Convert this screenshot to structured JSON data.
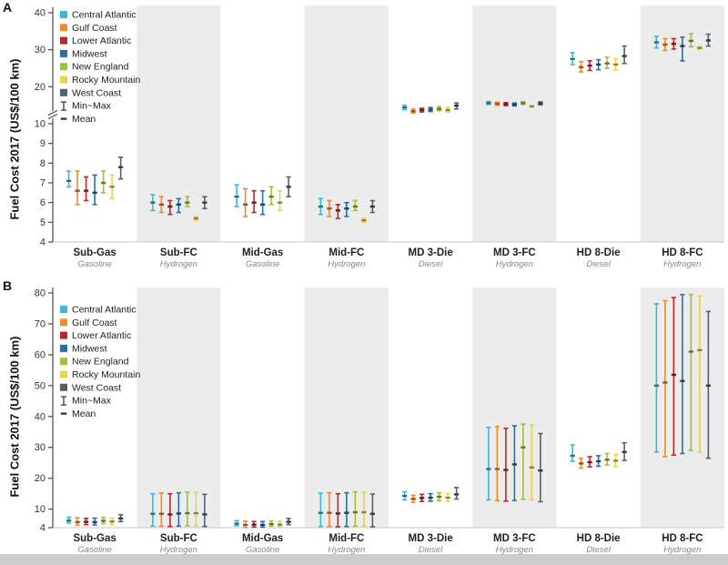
{
  "figure": {
    "bottom_strip_color": "#cdcdcd",
    "background_color": "#ffffff"
  },
  "chart_data": [
    {
      "type": "errorbar",
      "panel_label": "A",
      "ylabel": "Fuel Cost  2017 (US$/100 km)",
      "ylim": [
        4,
        40
      ],
      "yticks": [
        4,
        5,
        6,
        7,
        8,
        9,
        10,
        20,
        30,
        40
      ],
      "axis_break": true,
      "break_between": [
        10,
        20
      ],
      "grid": false,
      "legend_position": "top-left",
      "band_color": "#ececec",
      "marker_dark": "#2f3a45",
      "categories": [
        {
          "label": "Sub-Gas",
          "fuel": "Gasoline"
        },
        {
          "label": "Sub-FC",
          "fuel": "Hydrogen"
        },
        {
          "label": "Mid-Gas",
          "fuel": "Gasoline"
        },
        {
          "label": "Mid-FC",
          "fuel": "Hydrogen"
        },
        {
          "label": "MD 3-Die",
          "fuel": "Diesel"
        },
        {
          "label": "MD 3-FC",
          "fuel": "Hydrogen"
        },
        {
          "label": "HD 8-Die",
          "fuel": "Diesel"
        },
        {
          "label": "HD 8-FC",
          "fuel": "Hydrogen"
        }
      ],
      "regions": [
        {
          "name": "Central Atlantic",
          "color": "#3bb8d9"
        },
        {
          "name": "Gulf Coast",
          "color": "#ef8b2c"
        },
        {
          "name": "Lower Atlantic",
          "color": "#b2292e"
        },
        {
          "name": "Midwest",
          "color": "#2a6ea6"
        },
        {
          "name": "New England",
          "color": "#a2c037"
        },
        {
          "name": "Rocky Mountain",
          "color": "#e8d44d"
        },
        {
          "name": "West Coast",
          "color": "#53616f"
        }
      ],
      "legend_extra": [
        {
          "name": "Min~Max",
          "glyph": "errorbar-icon"
        },
        {
          "name": "Mean",
          "glyph": "dash-icon"
        }
      ],
      "values_format": "per category: per region [min, mean, max]",
      "values": [
        [
          [
            6.8,
            7.1,
            7.6
          ],
          [
            5.9,
            6.6,
            7.6
          ],
          [
            6.1,
            6.6,
            7.3
          ],
          [
            5.9,
            6.5,
            7.4
          ],
          [
            6.5,
            7.0,
            7.6
          ],
          [
            6.2,
            6.8,
            7.4
          ],
          [
            7.2,
            7.8,
            8.3
          ]
        ],
        [
          [
            5.6,
            6.0,
            6.4
          ],
          [
            5.5,
            5.9,
            6.3
          ],
          [
            5.4,
            5.8,
            6.1
          ],
          [
            5.5,
            5.9,
            6.2
          ],
          [
            5.8,
            6.0,
            6.3
          ],
          [
            5.1,
            5.2,
            5.3
          ],
          [
            5.7,
            6.0,
            6.3
          ]
        ],
        [
          [
            5.8,
            6.3,
            6.9
          ],
          [
            5.3,
            5.9,
            6.7
          ],
          [
            5.5,
            6.0,
            6.6
          ],
          [
            5.4,
            5.9,
            6.6
          ],
          [
            5.9,
            6.3,
            6.8
          ],
          [
            5.6,
            6.0,
            6.6
          ],
          [
            6.3,
            6.8,
            7.3
          ]
        ],
        [
          [
            5.4,
            5.8,
            6.2
          ],
          [
            5.3,
            5.7,
            6.1
          ],
          [
            5.2,
            5.6,
            5.9
          ],
          [
            5.3,
            5.7,
            6.0
          ],
          [
            5.6,
            5.8,
            6.1
          ],
          [
            5.0,
            5.1,
            5.2
          ],
          [
            5.5,
            5.8,
            6.1
          ]
        ],
        [
          [
            13.8,
            14.4,
            15.0
          ],
          [
            12.9,
            13.4,
            14.0
          ],
          [
            13.2,
            13.7,
            14.2
          ],
          [
            13.3,
            13.8,
            14.4
          ],
          [
            13.5,
            14.0,
            14.6
          ],
          [
            13.2,
            13.7,
            14.4
          ],
          [
            14.0,
            14.9,
            15.6
          ]
        ],
        [
          [
            15.2,
            15.6,
            16.0
          ],
          [
            15.0,
            15.4,
            15.8
          ],
          [
            14.9,
            15.3,
            15.7
          ],
          [
            14.8,
            15.2,
            15.6
          ],
          [
            15.2,
            15.6,
            15.9
          ],
          [
            14.6,
            14.7,
            14.8
          ],
          [
            15.1,
            15.5,
            15.9
          ]
        ],
        [
          [
            26.0,
            27.5,
            29.2
          ],
          [
            24.0,
            25.3,
            26.8
          ],
          [
            24.4,
            25.7,
            27.0
          ],
          [
            24.6,
            26.0,
            27.3
          ],
          [
            25.0,
            26.3,
            28.0
          ],
          [
            24.5,
            26.0,
            27.6
          ],
          [
            26.3,
            28.3,
            31.0
          ]
        ],
        [
          [
            30.5,
            32.0,
            33.6
          ],
          [
            29.8,
            31.4,
            33.0
          ],
          [
            30.2,
            31.6,
            33.0
          ],
          [
            27.0,
            31.0,
            33.4
          ],
          [
            30.8,
            32.4,
            34.3
          ],
          [
            30.2,
            30.5,
            30.8
          ],
          [
            31.0,
            32.5,
            34.2
          ]
        ]
      ]
    },
    {
      "type": "errorbar",
      "panel_label": "B",
      "ylabel": "Fuel Cost  2017 (US$/100 km)",
      "ylim": [
        4,
        80
      ],
      "yticks": [
        4,
        10,
        20,
        30,
        40,
        50,
        60,
        70,
        80
      ],
      "axis_break": false,
      "grid": false,
      "legend_position": "top-left",
      "band_color": "#ececec",
      "marker_dark": "#2f3a45",
      "categories": [
        {
          "label": "Sub-Gas",
          "fuel": "Gasoline"
        },
        {
          "label": "Sub-FC",
          "fuel": "Hydrogen"
        },
        {
          "label": "Mid-Gas",
          "fuel": "Gasoline"
        },
        {
          "label": "Mid-FC",
          "fuel": "Hydrogen"
        },
        {
          "label": "MD 3-Die",
          "fuel": "Diesel"
        },
        {
          "label": "MD 3-FC",
          "fuel": "Hydrogen"
        },
        {
          "label": "HD 8-Die",
          "fuel": "Diesel"
        },
        {
          "label": "HD 8-FC",
          "fuel": "Hydrogen"
        }
      ],
      "regions": [
        {
          "name": "Central Atlantic",
          "color": "#3bb8d9"
        },
        {
          "name": "Gulf Coast",
          "color": "#ef8b2c"
        },
        {
          "name": "Lower Atlantic",
          "color": "#b2292e"
        },
        {
          "name": "Midwest",
          "color": "#2a6ea6"
        },
        {
          "name": "New England",
          "color": "#a2c037"
        },
        {
          "name": "Rocky Mountain",
          "color": "#e8d44d"
        },
        {
          "name": "West Coast",
          "color": "#53616f"
        }
      ],
      "legend_extra": [
        {
          "name": "Min~Max",
          "glyph": "errorbar-icon"
        },
        {
          "name": "Mean",
          "glyph": "dash-icon"
        }
      ],
      "values_format": "per category: per region [min, mean, max]",
      "values": [
        [
          [
            5.5,
            6.3,
            7.4
          ],
          [
            4.8,
            5.8,
            7.2
          ],
          [
            5.0,
            5.9,
            7.0
          ],
          [
            4.9,
            5.8,
            7.1
          ],
          [
            5.3,
            6.2,
            7.3
          ],
          [
            5.0,
            6.0,
            7.1
          ],
          [
            6.0,
            7.0,
            8.2
          ]
        ],
        [
          [
            4.5,
            8.5,
            15.0
          ],
          [
            4.5,
            8.5,
            15.2
          ],
          [
            4.4,
            8.3,
            15.0
          ],
          [
            4.5,
            8.6,
            15.3
          ],
          [
            4.6,
            8.7,
            15.5
          ],
          [
            4.6,
            8.7,
            15.5
          ],
          [
            4.4,
            8.3,
            14.8
          ]
        ],
        [
          [
            4.6,
            5.3,
            6.3
          ],
          [
            4.1,
            4.9,
            6.1
          ],
          [
            4.2,
            5.0,
            6.0
          ],
          [
            4.2,
            4.9,
            6.0
          ],
          [
            4.5,
            5.2,
            6.2
          ],
          [
            4.3,
            5.0,
            6.1
          ],
          [
            5.0,
            5.9,
            7.0
          ]
        ],
        [
          [
            4.4,
            8.8,
            15.2
          ],
          [
            4.4,
            8.8,
            15.3
          ],
          [
            4.3,
            8.6,
            15.0
          ],
          [
            4.4,
            8.8,
            15.3
          ],
          [
            4.5,
            9.0,
            15.6
          ],
          [
            4.5,
            9.0,
            15.6
          ],
          [
            4.3,
            8.5,
            14.9
          ]
        ],
        [
          [
            13.0,
            14.3,
            15.6
          ],
          [
            12.2,
            13.3,
            14.5
          ],
          [
            12.5,
            13.6,
            14.8
          ],
          [
            12.6,
            13.7,
            15.0
          ],
          [
            12.8,
            14.0,
            15.3
          ],
          [
            12.5,
            13.7,
            15.1
          ],
          [
            13.3,
            14.8,
            17.0
          ]
        ],
        [
          [
            13.0,
            23.0,
            36.5
          ],
          [
            12.8,
            23.0,
            36.8
          ],
          [
            12.6,
            22.7,
            36.2
          ],
          [
            12.8,
            24.5,
            37.0
          ],
          [
            13.2,
            30.0,
            37.5
          ],
          [
            13.0,
            23.5,
            37.2
          ],
          [
            12.4,
            22.5,
            34.5
          ]
        ],
        [
          [
            25.5,
            27.3,
            30.8
          ],
          [
            23.3,
            24.8,
            26.5
          ],
          [
            23.7,
            25.2,
            27.0
          ],
          [
            23.9,
            25.5,
            27.3
          ],
          [
            24.3,
            26.0,
            28.0
          ],
          [
            23.8,
            25.7,
            27.7
          ],
          [
            25.8,
            28.5,
            31.5
          ]
        ],
        [
          [
            28.5,
            50.0,
            76.5
          ],
          [
            27.0,
            51.0,
            77.5
          ],
          [
            27.5,
            53.5,
            78.5
          ],
          [
            28.0,
            51.5,
            79.5
          ],
          [
            29.0,
            61.0,
            79.5
          ],
          [
            28.5,
            61.5,
            79.0
          ],
          [
            26.5,
            50.0,
            74.0
          ]
        ]
      ]
    }
  ]
}
